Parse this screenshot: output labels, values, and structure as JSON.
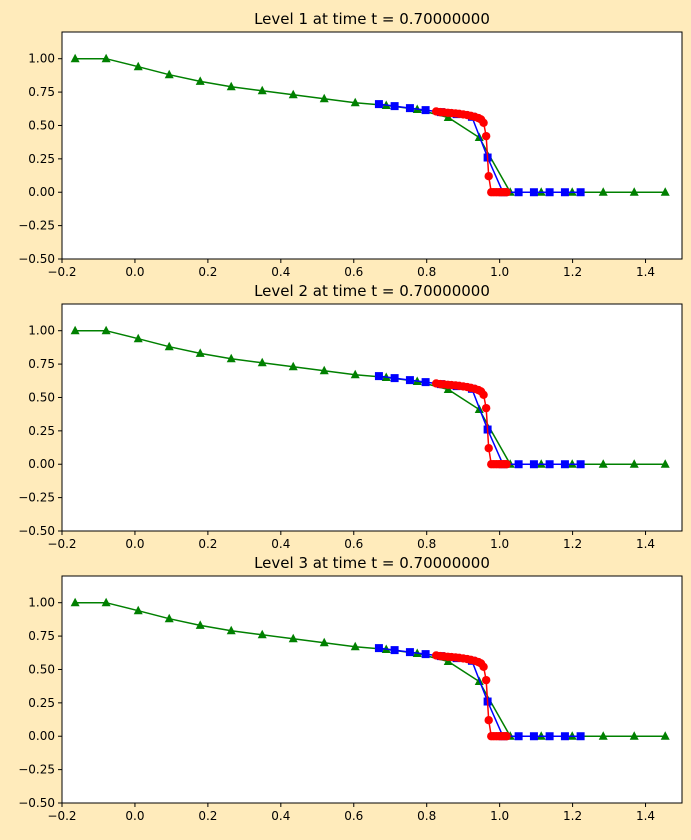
{
  "colors": {
    "figure_bg": "#ffebbb",
    "axes_bg": "#ffffff",
    "level1_series": "#008000",
    "level2_series": "#0000ff",
    "level3_series": "#ff0000"
  },
  "chart_data": [
    {
      "type": "line",
      "title": "Level 1 at time t =      0.70000000",
      "xlim": [
        -0.2,
        1.5
      ],
      "ylim": [
        -0.5,
        1.2
      ],
      "xticks": [
        "−0.2",
        "0.0",
        "0.2",
        "0.4",
        "0.6",
        "0.8",
        "1.0",
        "1.2",
        "1.4"
      ],
      "yticks": [
        "−0.50",
        "−0.25",
        "0.00",
        "0.25",
        "0.50",
        "0.75",
        "1.00"
      ],
      "xtick_values": [
        -0.2,
        0.0,
        0.2,
        0.4,
        0.6,
        0.8,
        1.0,
        1.2,
        1.4
      ],
      "ytick_values": [
        -0.5,
        -0.25,
        0.0,
        0.25,
        0.5,
        0.75,
        1.0
      ],
      "grid": false,
      "series": [
        {
          "marker": "triangle",
          "color": "#008000",
          "x": [
            -0.164,
            -0.079,
            0.009,
            0.094,
            0.179,
            0.264,
            0.349,
            0.434,
            0.519,
            0.604,
            0.689,
            0.774,
            0.859,
            0.944,
            1.029,
            1.114,
            1.199,
            1.284,
            1.369,
            1.454
          ],
          "y": [
            1.0,
            1.0,
            0.94,
            0.88,
            0.83,
            0.79,
            0.76,
            0.73,
            0.7,
            0.67,
            0.65,
            0.62,
            0.56,
            0.41,
            0.0,
            0.0,
            0.0,
            0.0,
            0.0,
            0.0
          ]
        },
        {
          "marker": "square",
          "color": "#0000ff",
          "x": [
            0.669,
            0.712,
            0.754,
            0.797,
            0.839,
            0.882,
            0.924,
            0.967,
            1.009,
            1.052,
            1.094,
            1.137,
            1.179,
            1.222
          ],
          "y": [
            0.66,
            0.645,
            0.63,
            0.615,
            0.6,
            0.585,
            0.565,
            0.26,
            0.0,
            0.0,
            0.0,
            0.0,
            0.0,
            0.0
          ]
        },
        {
          "marker": "circle",
          "color": "#ff0000",
          "x": [
            0.826,
            0.837,
            0.847,
            0.858,
            0.868,
            0.879,
            0.889,
            0.9,
            0.911,
            0.921,
            0.932,
            0.942,
            0.949,
            0.956,
            0.963,
            0.97,
            0.977,
            0.984,
            0.991,
            0.998,
            1.005,
            1.012,
            1.019
          ],
          "y": [
            0.605,
            0.6,
            0.598,
            0.595,
            0.593,
            0.59,
            0.587,
            0.583,
            0.578,
            0.572,
            0.565,
            0.555,
            0.545,
            0.52,
            0.42,
            0.12,
            0.0,
            0.0,
            0.0,
            0.0,
            0.0,
            0.0,
            0.0
          ]
        }
      ]
    },
    {
      "type": "line",
      "title": "Level 2 at time t =      0.70000000",
      "xlim": [
        -0.2,
        1.5
      ],
      "ylim": [
        -0.5,
        1.2
      ],
      "xticks": [
        "−0.2",
        "0.0",
        "0.2",
        "0.4",
        "0.6",
        "0.8",
        "1.0",
        "1.2",
        "1.4"
      ],
      "yticks": [
        "−0.50",
        "−0.25",
        "0.00",
        "0.25",
        "0.50",
        "0.75",
        "1.00"
      ],
      "xtick_values": [
        -0.2,
        0.0,
        0.2,
        0.4,
        0.6,
        0.8,
        1.0,
        1.2,
        1.4
      ],
      "ytick_values": [
        -0.5,
        -0.25,
        0.0,
        0.25,
        0.5,
        0.75,
        1.0
      ],
      "grid": false,
      "series": [
        {
          "marker": "triangle",
          "color": "#008000",
          "x": [
            -0.164,
            -0.079,
            0.009,
            0.094,
            0.179,
            0.264,
            0.349,
            0.434,
            0.519,
            0.604,
            0.689,
            0.774,
            0.859,
            0.944,
            1.029,
            1.114,
            1.199,
            1.284,
            1.369,
            1.454
          ],
          "y": [
            1.0,
            1.0,
            0.94,
            0.88,
            0.83,
            0.79,
            0.76,
            0.73,
            0.7,
            0.67,
            0.65,
            0.62,
            0.56,
            0.41,
            0.0,
            0.0,
            0.0,
            0.0,
            0.0,
            0.0
          ]
        },
        {
          "marker": "square",
          "color": "#0000ff",
          "x": [
            0.669,
            0.712,
            0.754,
            0.797,
            0.839,
            0.882,
            0.924,
            0.967,
            1.009,
            1.052,
            1.094,
            1.137,
            1.179,
            1.222
          ],
          "y": [
            0.66,
            0.645,
            0.63,
            0.615,
            0.6,
            0.585,
            0.565,
            0.26,
            0.0,
            0.0,
            0.0,
            0.0,
            0.0,
            0.0
          ]
        },
        {
          "marker": "circle",
          "color": "#ff0000",
          "x": [
            0.826,
            0.837,
            0.847,
            0.858,
            0.868,
            0.879,
            0.889,
            0.9,
            0.911,
            0.921,
            0.932,
            0.942,
            0.949,
            0.956,
            0.963,
            0.97,
            0.977,
            0.984,
            0.991,
            0.998,
            1.005,
            1.012,
            1.019
          ],
          "y": [
            0.605,
            0.6,
            0.598,
            0.595,
            0.593,
            0.59,
            0.587,
            0.583,
            0.578,
            0.572,
            0.565,
            0.555,
            0.545,
            0.52,
            0.42,
            0.12,
            0.0,
            0.0,
            0.0,
            0.0,
            0.0,
            0.0,
            0.0
          ]
        }
      ]
    },
    {
      "type": "line",
      "title": "Level 3 at time t =      0.70000000",
      "xlim": [
        -0.2,
        1.5
      ],
      "ylim": [
        -0.5,
        1.2
      ],
      "xticks": [
        "−0.2",
        "0.0",
        "0.2",
        "0.4",
        "0.6",
        "0.8",
        "1.0",
        "1.2",
        "1.4"
      ],
      "yticks": [
        "−0.50",
        "−0.25",
        "0.00",
        "0.25",
        "0.50",
        "0.75",
        "1.00"
      ],
      "xtick_values": [
        -0.2,
        0.0,
        0.2,
        0.4,
        0.6,
        0.8,
        1.0,
        1.2,
        1.4
      ],
      "ytick_values": [
        -0.5,
        -0.25,
        0.0,
        0.25,
        0.5,
        0.75,
        1.0
      ],
      "grid": false,
      "series": [
        {
          "marker": "triangle",
          "color": "#008000",
          "x": [
            -0.164,
            -0.079,
            0.009,
            0.094,
            0.179,
            0.264,
            0.349,
            0.434,
            0.519,
            0.604,
            0.689,
            0.774,
            0.859,
            0.944,
            1.029,
            1.114,
            1.199,
            1.284,
            1.369,
            1.454
          ],
          "y": [
            1.0,
            1.0,
            0.94,
            0.88,
            0.83,
            0.79,
            0.76,
            0.73,
            0.7,
            0.67,
            0.65,
            0.62,
            0.56,
            0.41,
            0.0,
            0.0,
            0.0,
            0.0,
            0.0,
            0.0
          ]
        },
        {
          "marker": "square",
          "color": "#0000ff",
          "x": [
            0.669,
            0.712,
            0.754,
            0.797,
            0.839,
            0.882,
            0.924,
            0.967,
            1.009,
            1.052,
            1.094,
            1.137,
            1.179,
            1.222
          ],
          "y": [
            0.66,
            0.645,
            0.63,
            0.615,
            0.6,
            0.585,
            0.565,
            0.26,
            0.0,
            0.0,
            0.0,
            0.0,
            0.0,
            0.0
          ]
        },
        {
          "marker": "circle",
          "color": "#ff0000",
          "x": [
            0.826,
            0.837,
            0.847,
            0.858,
            0.868,
            0.879,
            0.889,
            0.9,
            0.911,
            0.921,
            0.932,
            0.942,
            0.949,
            0.956,
            0.963,
            0.97,
            0.977,
            0.984,
            0.991,
            0.998,
            1.005,
            1.012,
            1.019
          ],
          "y": [
            0.605,
            0.6,
            0.598,
            0.595,
            0.593,
            0.59,
            0.587,
            0.583,
            0.578,
            0.572,
            0.565,
            0.555,
            0.545,
            0.52,
            0.42,
            0.12,
            0.0,
            0.0,
            0.0,
            0.0,
            0.0,
            0.0,
            0.0
          ]
        }
      ]
    }
  ]
}
